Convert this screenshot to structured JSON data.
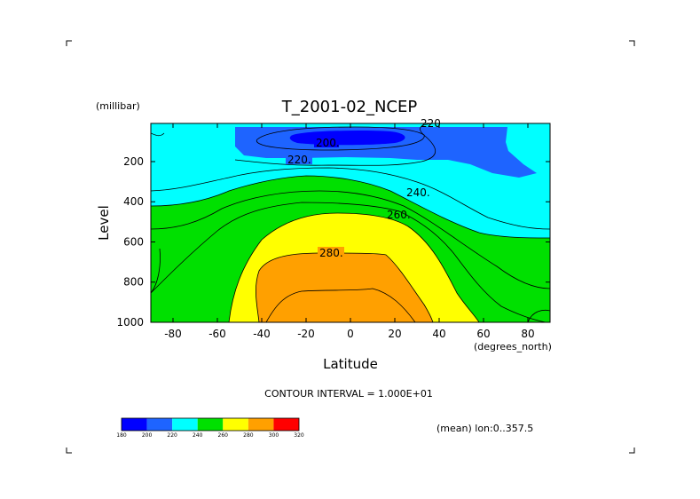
{
  "chart_data": {
    "type": "contour",
    "title": "T_2001-02_NCEP",
    "xlabel": "Latitude",
    "x_units": "(degrees_north)",
    "ylabel": "Level",
    "y_units": "(millibar)",
    "xlim": [
      -90,
      90
    ],
    "ylim": [
      1000,
      10
    ],
    "x_ticks": [
      -80,
      -60,
      -40,
      -20,
      0,
      20,
      40,
      60,
      80
    ],
    "y_ticks": [
      1000,
      800,
      600,
      400,
      200
    ],
    "contour_levels": [
      200,
      220,
      240,
      260,
      280
    ],
    "contour_labels": [
      "200.",
      "220.",
      "240.",
      "260.",
      "280.",
      "220"
    ],
    "contour_interval_text": "CONTOUR INTERVAL = 1.000E+01",
    "mean_text": "(mean) lon:0..357.5",
    "colorbar": {
      "ticks": [
        180,
        200,
        220,
        240,
        260,
        280,
        300,
        320
      ],
      "colors": [
        "#0000ff",
        "#1e64ff",
        "#00ffff",
        "#00e000",
        "#ffff00",
        "#ffa000",
        "#ff0000"
      ]
    },
    "fill_colors": {
      "deep_blue": "#0000ff",
      "blue": "#1e64ff",
      "cyan": "#00ffff",
      "green": "#00e000",
      "yellow": "#ffff00",
      "orange": "#ffa000"
    }
  }
}
